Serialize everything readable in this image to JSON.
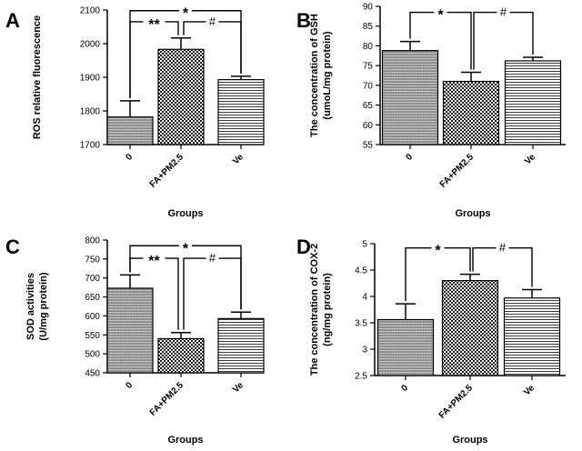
{
  "colors": {
    "axis": "#000000",
    "bar_stroke": "#000000",
    "background": "#ffffff"
  },
  "chart_data": [
    {
      "panel": "A",
      "type": "bar",
      "categories": [
        "0",
        "FA+PM2.5",
        "Ve"
      ],
      "values": [
        1782,
        1983,
        1893
      ],
      "errors": [
        48,
        34,
        10
      ],
      "ylabel_lines": [
        "ROS relative fluorescence"
      ],
      "xlabel": "Groups",
      "ylim": [
        1700,
        2100
      ],
      "yticks": [
        1700,
        1800,
        1900,
        2000,
        2100
      ],
      "patterns": [
        "gradient",
        "checker",
        "hstripe"
      ],
      "significance": [
        {
          "from": 0,
          "to": 2,
          "label": "*",
          "level": 2098
        },
        {
          "from": 0,
          "to": 1,
          "label": "**",
          "level": 2065
        },
        {
          "from": 1,
          "to": 2,
          "label": "#",
          "level": 2065
        }
      ]
    },
    {
      "panel": "B",
      "type": "bar",
      "categories": [
        "0",
        "FA+PM2.5",
        "Ve"
      ],
      "values": [
        78.8,
        71.0,
        76.2
      ],
      "errors": [
        2.3,
        2.3,
        0.9
      ],
      "ylabel_lines": [
        "The concentration of GSH",
        "(umoL/mg protein)"
      ],
      "xlabel": "Groups",
      "ylim": [
        55,
        90
      ],
      "yticks": [
        55,
        60,
        65,
        70,
        75,
        80,
        85,
        90
      ],
      "patterns": [
        "gradient",
        "checker",
        "hstripe"
      ],
      "significance": [
        {
          "from": 0,
          "to": 1,
          "label": "*",
          "level": 88.5
        },
        {
          "from": 1,
          "to": 2,
          "label": "#",
          "level": 88.5
        }
      ]
    },
    {
      "panel": "C",
      "type": "bar",
      "categories": [
        "0",
        "FA+PM2.5",
        "Ve"
      ],
      "values": [
        673,
        540,
        593
      ],
      "errors": [
        35,
        16,
        17
      ],
      "ylabel_lines": [
        "SOD activities",
        "(U/mg protein)"
      ],
      "xlabel": "Groups",
      "ylim": [
        450,
        800
      ],
      "yticks": [
        450,
        500,
        550,
        600,
        650,
        700,
        750,
        800
      ],
      "patterns": [
        "gradient",
        "checker",
        "hstripe"
      ],
      "significance": [
        {
          "from": 0,
          "to": 2,
          "label": "*",
          "level": 785
        },
        {
          "from": 0,
          "to": 1,
          "label": "**",
          "level": 752
        },
        {
          "from": 1,
          "to": 2,
          "label": "#",
          "level": 752
        }
      ]
    },
    {
      "panel": "D",
      "type": "bar",
      "categories": [
        "0",
        "FA+PM2.5",
        "Ve"
      ],
      "values": [
        3.56,
        4.3,
        3.97
      ],
      "errors": [
        0.3,
        0.12,
        0.16
      ],
      "ylabel_lines": [
        "The concentration of COX-2",
        "(ng/mg protein)"
      ],
      "xlabel": "Groups",
      "ylim": [
        2.5,
        5.0
      ],
      "yticks": [
        2.5,
        3.0,
        3.5,
        4.0,
        4.5,
        5.0
      ],
      "patterns": [
        "gradient",
        "checker",
        "hstripe"
      ],
      "significance": [
        {
          "from": 0,
          "to": 1,
          "label": "*",
          "level": 4.92
        },
        {
          "from": 1,
          "to": 2,
          "label": "#",
          "level": 4.92
        }
      ]
    }
  ]
}
